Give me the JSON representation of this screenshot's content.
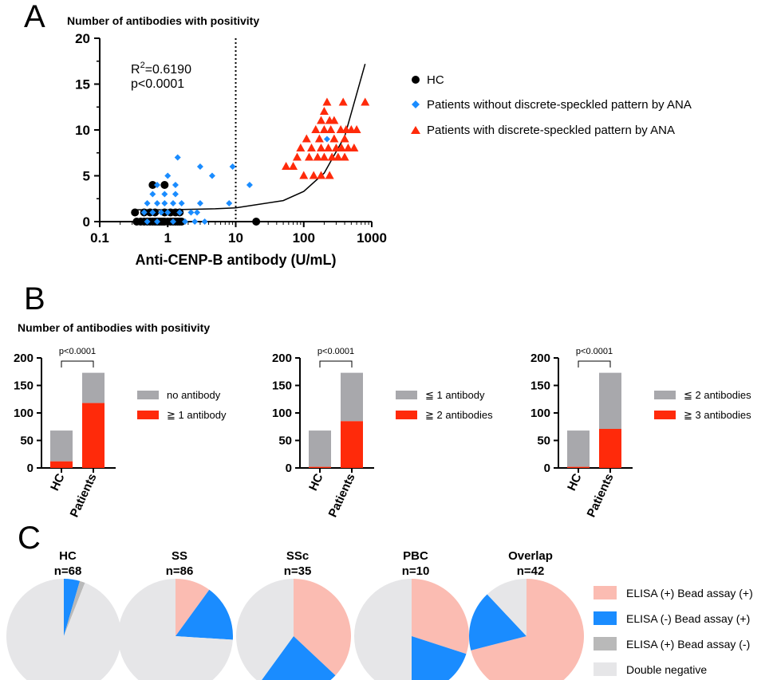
{
  "colors": {
    "hc": "#000000",
    "blue": "#1a8cff",
    "red": "#ff2a0a",
    "gray_bar": "#a8a8ac",
    "red_bar": "#ff2a0a",
    "pie_pink": "#fbbcb2",
    "pie_blue": "#1a8cff",
    "pie_gray": "#b9b9b9",
    "pie_light": "#e6e6e8"
  },
  "panel_a": {
    "letter": "A",
    "title": "Number of antibodies with positivity",
    "stats_r2": "R",
    "stats_r2_sup": "2",
    "stats_r2_val": "=0.6190",
    "stats_p": "p<0.0001",
    "legend": [
      {
        "key": "hc",
        "label": "HC"
      },
      {
        "key": "blue",
        "label": "Patients without discrete-speckled pattern by ANA"
      },
      {
        "key": "red",
        "label": "Patients with discrete-speckled pattern by ANA"
      }
    ]
  },
  "chart_data": [
    {
      "type": "scatter",
      "title": "Number of antibodies with positivity",
      "xlabel": "Anti-CENP-B antibody (U/mL)",
      "ylabel": "",
      "xscale": "log",
      "xlim": [
        0.1,
        1000
      ],
      "ylim": [
        0,
        20
      ],
      "x_ticks": [
        "0.1",
        "1",
        "10",
        "100",
        "1000"
      ],
      "y_ticks": [
        "0",
        "5",
        "10",
        "15",
        "20"
      ],
      "reference_line_x": 10,
      "annotations": [
        "R2=0.6190",
        "p<0.0001"
      ],
      "fit_curve": {
        "type": "exponential",
        "x": [
          0.35,
          1,
          5,
          10,
          50,
          100,
          200,
          400,
          800
        ],
        "y": [
          1.3,
          1.3,
          1.4,
          1.5,
          2.3,
          3.3,
          5.3,
          9.3,
          17.2
        ]
      },
      "series": [
        {
          "name": "HC",
          "marker": "circle",
          "color": "#000000",
          "points": [
            [
              0.35,
              0
            ],
            [
              0.4,
              0
            ],
            [
              0.45,
              0
            ],
            [
              0.5,
              0
            ],
            [
              0.55,
              0
            ],
            [
              0.6,
              0
            ],
            [
              0.65,
              0
            ],
            [
              0.7,
              0
            ],
            [
              0.75,
              0
            ],
            [
              0.8,
              0
            ],
            [
              0.85,
              0
            ],
            [
              0.9,
              0
            ],
            [
              1.0,
              0
            ],
            [
              1.1,
              0
            ],
            [
              1.2,
              0
            ],
            [
              1.3,
              0
            ],
            [
              1.4,
              0
            ],
            [
              1.5,
              0
            ],
            [
              1.6,
              0
            ],
            [
              20,
              0
            ],
            [
              0.33,
              1
            ],
            [
              0.45,
              1
            ],
            [
              0.55,
              1
            ],
            [
              0.65,
              1
            ],
            [
              0.9,
              1
            ],
            [
              1.1,
              1
            ],
            [
              1.3,
              1
            ],
            [
              1.5,
              1
            ],
            [
              0.6,
              4
            ],
            [
              0.9,
              4
            ]
          ]
        },
        {
          "name": "Patients without discrete-speckled pattern by ANA",
          "marker": "diamond",
          "color": "#1a8cff",
          "points": [
            [
              0.5,
              0
            ],
            [
              0.7,
              0
            ],
            [
              1.2,
              0
            ],
            [
              1.8,
              0
            ],
            [
              2.5,
              0
            ],
            [
              3.5,
              0
            ],
            [
              0.45,
              1
            ],
            [
              0.6,
              1
            ],
            [
              0.8,
              1
            ],
            [
              1.0,
              1
            ],
            [
              1.5,
              1
            ],
            [
              2.2,
              1
            ],
            [
              2.7,
              1
            ],
            [
              0.5,
              2
            ],
            [
              0.7,
              2
            ],
            [
              0.9,
              2
            ],
            [
              1.2,
              2
            ],
            [
              1.6,
              2
            ],
            [
              3.0,
              2
            ],
            [
              8.0,
              2
            ],
            [
              0.6,
              3
            ],
            [
              0.9,
              3
            ],
            [
              1.3,
              3
            ],
            [
              0.7,
              4
            ],
            [
              1.3,
              4
            ],
            [
              16,
              4
            ],
            [
              1.0,
              5
            ],
            [
              4.5,
              5
            ],
            [
              3.0,
              6
            ],
            [
              9.0,
              6
            ],
            [
              1.4,
              7
            ],
            [
              220,
              9
            ]
          ]
        },
        {
          "name": "Patients with discrete-speckled pattern by ANA",
          "marker": "triangle",
          "color": "#ff2a0a",
          "points": [
            [
              55,
              6
            ],
            [
              70,
              6
            ],
            [
              100,
              5
            ],
            [
              140,
              5
            ],
            [
              180,
              5
            ],
            [
              240,
              5
            ],
            [
              80,
              7
            ],
            [
              120,
              7
            ],
            [
              160,
              7
            ],
            [
              200,
              7
            ],
            [
              260,
              7
            ],
            [
              320,
              7
            ],
            [
              400,
              7
            ],
            [
              90,
              8
            ],
            [
              130,
              8
            ],
            [
              180,
              8
            ],
            [
              230,
              8
            ],
            [
              300,
              8
            ],
            [
              360,
              8
            ],
            [
              450,
              8
            ],
            [
              550,
              8
            ],
            [
              110,
              9
            ],
            [
              170,
              9
            ],
            [
              280,
              9
            ],
            [
              400,
              9
            ],
            [
              150,
              10
            ],
            [
              200,
              10
            ],
            [
              250,
              10
            ],
            [
              350,
              10
            ],
            [
              420,
              10
            ],
            [
              500,
              10
            ],
            [
              600,
              10
            ],
            [
              180,
              11
            ],
            [
              240,
              11
            ],
            [
              280,
              11
            ],
            [
              200,
              12
            ],
            [
              220,
              13
            ],
            [
              380,
              13
            ],
            [
              800,
              13
            ]
          ]
        }
      ]
    },
    {
      "type": "bar",
      "stacked": true,
      "categories": [
        "HC",
        "Patients"
      ],
      "ylim": [
        0,
        200
      ],
      "y_ticks": [
        "0",
        "50",
        "100",
        "150",
        "200"
      ],
      "p_value": "p<0.0001",
      "series": [
        {
          "name": "≧ 1 antibody",
          "values": [
            12,
            118
          ]
        },
        {
          "name": "no antibody",
          "values": [
            56,
            55
          ]
        }
      ]
    },
    {
      "type": "bar",
      "stacked": true,
      "categories": [
        "HC",
        "Patients"
      ],
      "ylim": [
        0,
        200
      ],
      "y_ticks": [
        "0",
        "50",
        "100",
        "150",
        "200"
      ],
      "p_value": "p<0.0001",
      "series": [
        {
          "name": "≧ 2 antibodies",
          "values": [
            2,
            85
          ]
        },
        {
          "name": "≦ 1 antibody",
          "values": [
            66,
            88
          ]
        }
      ]
    },
    {
      "type": "bar",
      "stacked": true,
      "categories": [
        "HC",
        "Patients"
      ],
      "ylim": [
        0,
        200
      ],
      "y_ticks": [
        "0",
        "50",
        "100",
        "150",
        "200"
      ],
      "p_value": "p<0.0001",
      "series": [
        {
          "name": "≧ 3 antibodies",
          "values": [
            2,
            71
          ]
        },
        {
          "name": "≦ 2 antibodies",
          "values": [
            66,
            102
          ]
        }
      ]
    },
    {
      "type": "pie",
      "pies": [
        {
          "title": "HC",
          "n": "n=68",
          "slices": [
            0,
            0.045,
            0.015,
            0.94
          ]
        },
        {
          "title": "SS",
          "n": "n=86",
          "slices": [
            0.1,
            0.16,
            0,
            0.74
          ]
        },
        {
          "title": "SSc",
          "n": "n=35",
          "slices": [
            0.37,
            0.23,
            0,
            0.4
          ]
        },
        {
          "title": "PBC",
          "n": "n=10",
          "slices": [
            0.3,
            0.2,
            0,
            0.5
          ]
        },
        {
          "title": "Overlap",
          "n": "n=42",
          "slices": [
            0.71,
            0.17,
            0,
            0.12
          ]
        }
      ],
      "legend": [
        "ELISA (+)  Bead assay (+)",
        "ELISA  (-)  Bead assay (+)",
        "ELISA (+)  Bead assay  (-)",
        "Double negative"
      ]
    }
  ],
  "panel_b": {
    "letter": "B",
    "title": "Number of antibodies with positivity"
  },
  "panel_c": {
    "letter": "C"
  }
}
